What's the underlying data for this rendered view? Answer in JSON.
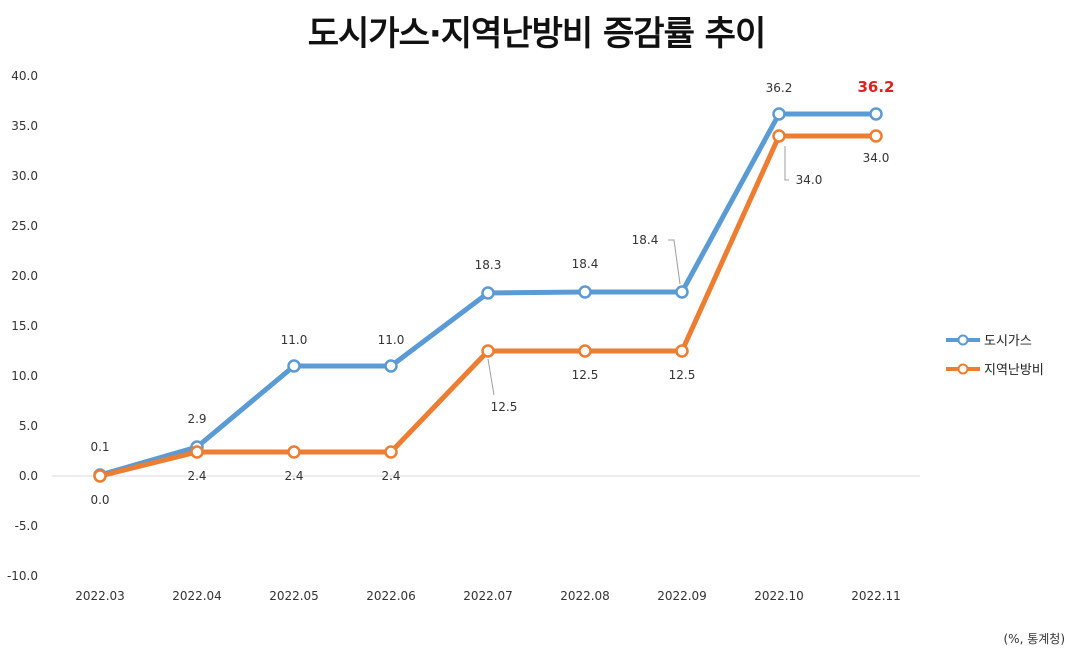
{
  "title": "도시가스·지역난방비 증감률 추이",
  "source": "(%, 통계청)",
  "colors": {
    "city_gas": "#5b9bd5",
    "district_heating": "#ed7d31",
    "highlight": "#e02020",
    "axis_text": "#333333",
    "gridline": "#d9d9d9"
  },
  "chart_data": {
    "type": "line",
    "title": "도시가스·지역난방비 증감률 추이",
    "categories": [
      "2022.03",
      "2022.04",
      "2022.05",
      "2022.06",
      "2022.07",
      "2022.08",
      "2022.09",
      "2022.10",
      "2022.11"
    ],
    "y_ticks": [
      "40.0",
      "35.0",
      "30.0",
      "25.0",
      "20.0",
      "15.0",
      "10.0",
      "5.0",
      "0.0",
      "-5.0",
      "-10.0"
    ],
    "ylim": [
      -10,
      40
    ],
    "grid": false,
    "legend_position": "right",
    "series": [
      {
        "name": "도시가스",
        "color": "#5b9bd5",
        "values": [
          0.1,
          2.9,
          11.0,
          11.0,
          18.3,
          18.4,
          18.4,
          36.2,
          36.2
        ],
        "labels": [
          "0.1",
          "2.9",
          "11.0",
          "11.0",
          "18.3",
          "18.4",
          "18.4",
          "36.2",
          "36.2"
        ]
      },
      {
        "name": "지역난방비",
        "color": "#ed7d31",
        "values": [
          0.0,
          2.4,
          2.4,
          2.4,
          12.5,
          12.5,
          12.5,
          34.0,
          34.0
        ],
        "labels": [
          "0.0",
          "2.4",
          "2.4",
          "2.4",
          "12.5",
          "12.5",
          "12.5",
          "34.0",
          "34.0"
        ]
      }
    ]
  }
}
